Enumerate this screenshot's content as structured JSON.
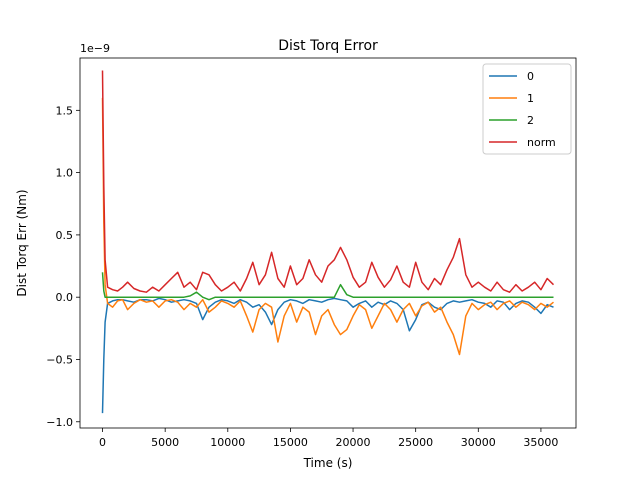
{
  "chart_data": {
    "type": "line",
    "title": "Dist Torq Error",
    "xlabel": "Time (s)",
    "ylabel": "Dist Torq Err (Nm)",
    "y_offset_text": "1e−9",
    "xlim": [
      -1800,
      37800
    ],
    "ylim": [
      -1.05,
      1.92
    ],
    "xticks": [
      0,
      5000,
      10000,
      15000,
      20000,
      25000,
      30000,
      35000
    ],
    "xtick_labels": [
      "0",
      "5000",
      "10000",
      "15000",
      "20000",
      "25000",
      "30000",
      "35000"
    ],
    "yticks": [
      -1.0,
      -0.5,
      0.0,
      0.5,
      1.0,
      1.5
    ],
    "ytick_labels": [
      "−1.0",
      "−0.5",
      "0.0",
      "0.5",
      "1.0",
      "1.5"
    ],
    "grid": false,
    "legend_position": "top-right",
    "series": [
      {
        "name": "0",
        "color": "#1f77b4",
        "x": [
          0,
          100,
          200,
          400,
          800,
          1200,
          1600,
          2000,
          2500,
          3000,
          3500,
          4000,
          4500,
          5000,
          5500,
          6000,
          6500,
          7000,
          7500,
          8000,
          8500,
          9000,
          9500,
          10000,
          10500,
          11000,
          11500,
          12000,
          12500,
          13000,
          13500,
          14000,
          14500,
          15000,
          15500,
          16000,
          16500,
          17000,
          17500,
          18000,
          18500,
          19000,
          19500,
          20000,
          20500,
          21000,
          21500,
          22000,
          22500,
          23000,
          23500,
          24000,
          24500,
          25000,
          25500,
          26000,
          26500,
          27000,
          27500,
          28000,
          28500,
          29000,
          29500,
          30000,
          30500,
          31000,
          31500,
          32000,
          32500,
          33000,
          33500,
          34000,
          34500,
          35000,
          35500,
          36000
        ],
        "values": [
          -0.93,
          -0.5,
          -0.2,
          -0.05,
          -0.03,
          -0.02,
          -0.02,
          -0.03,
          -0.04,
          -0.02,
          -0.02,
          -0.03,
          -0.01,
          -0.02,
          -0.04,
          -0.03,
          -0.02,
          -0.03,
          -0.05,
          -0.18,
          -0.08,
          -0.04,
          -0.02,
          -0.03,
          -0.05,
          -0.02,
          -0.04,
          -0.08,
          -0.06,
          -0.12,
          -0.22,
          -0.1,
          -0.04,
          -0.02,
          -0.03,
          -0.05,
          -0.02,
          -0.03,
          -0.04,
          -0.02,
          -0.01,
          -0.02,
          -0.03,
          -0.08,
          -0.05,
          -0.03,
          -0.08,
          -0.04,
          -0.06,
          -0.03,
          -0.05,
          -0.1,
          -0.27,
          -0.18,
          -0.06,
          -0.04,
          -0.08,
          -0.1,
          -0.05,
          -0.03,
          -0.04,
          -0.03,
          -0.02,
          -0.04,
          -0.05,
          -0.08,
          -0.03,
          -0.04,
          -0.1,
          -0.05,
          -0.03,
          -0.04,
          -0.08,
          -0.13,
          -0.06,
          -0.08
        ]
      },
      {
        "name": "1",
        "color": "#ff7f0e",
        "x": [
          0,
          100,
          200,
          400,
          800,
          1200,
          1600,
          2000,
          2500,
          3000,
          3500,
          4000,
          4500,
          5000,
          5500,
          6000,
          6500,
          7000,
          7500,
          8000,
          8500,
          9000,
          9500,
          10000,
          10500,
          11000,
          11500,
          12000,
          12500,
          13000,
          13500,
          14000,
          14500,
          15000,
          15500,
          16000,
          16500,
          17000,
          17500,
          18000,
          18500,
          19000,
          19500,
          20000,
          20500,
          21000,
          21500,
          22000,
          22500,
          23000,
          23500,
          24000,
          24500,
          25000,
          25500,
          26000,
          26500,
          27000,
          27500,
          28000,
          28500,
          29000,
          29500,
          30000,
          30500,
          31000,
          31500,
          32000,
          32500,
          33000,
          33500,
          34000,
          34500,
          35000,
          35500,
          36000
        ],
        "values": [
          1.6,
          0.6,
          0.1,
          -0.05,
          -0.08,
          -0.03,
          -0.02,
          -0.1,
          -0.05,
          -0.02,
          -0.04,
          -0.03,
          -0.08,
          -0.03,
          -0.02,
          -0.04,
          -0.1,
          -0.05,
          -0.08,
          -0.02,
          -0.12,
          -0.08,
          -0.03,
          -0.05,
          -0.08,
          -0.03,
          -0.15,
          -0.28,
          -0.1,
          -0.05,
          -0.08,
          -0.36,
          -0.15,
          -0.05,
          -0.2,
          -0.08,
          -0.12,
          -0.3,
          -0.15,
          -0.1,
          -0.22,
          -0.3,
          -0.26,
          -0.15,
          -0.06,
          -0.1,
          -0.25,
          -0.15,
          -0.05,
          -0.1,
          -0.2,
          -0.1,
          -0.05,
          -0.15,
          -0.07,
          -0.04,
          -0.12,
          -0.08,
          -0.2,
          -0.3,
          -0.46,
          -0.15,
          -0.05,
          -0.1,
          -0.06,
          -0.04,
          -0.1,
          -0.05,
          -0.03,
          -0.08,
          -0.04,
          -0.06,
          -0.1,
          -0.05,
          -0.08,
          -0.04
        ]
      },
      {
        "name": "2",
        "color": "#2ca02c",
        "x": [
          0,
          100,
          200,
          400,
          800,
          1200,
          1600,
          2000,
          2500,
          3000,
          3500,
          4000,
          4500,
          5000,
          5500,
          6000,
          6500,
          7000,
          7500,
          8000,
          8500,
          9000,
          9500,
          10000,
          10500,
          11000,
          11500,
          12000,
          12500,
          13000,
          13500,
          14000,
          14500,
          15000,
          15500,
          16000,
          16500,
          17000,
          17500,
          18000,
          18500,
          19000,
          19500,
          20000,
          20500,
          21000,
          21500,
          22000,
          22500,
          23000,
          23500,
          24000,
          24500,
          25000,
          25500,
          26000,
          26500,
          27000,
          27500,
          28000,
          28500,
          29000,
          29500,
          30000,
          30500,
          31000,
          31500,
          32000,
          32500,
          33000,
          33500,
          34000,
          34500,
          35000,
          35500,
          36000
        ],
        "values": [
          0.2,
          0.05,
          0.0,
          0.0,
          0.0,
          0.0,
          0.0,
          0.0,
          0.0,
          0.0,
          0.0,
          0.0,
          0.0,
          0.0,
          0.0,
          0.0,
          0.0,
          0.01,
          0.04,
          0.0,
          -0.02,
          0.0,
          0.0,
          0.0,
          0.0,
          0.0,
          0.0,
          0.0,
          0.0,
          0.0,
          0.0,
          0.0,
          0.0,
          0.0,
          0.0,
          0.0,
          0.0,
          0.0,
          0.0,
          0.0,
          0.0,
          0.1,
          0.02,
          0.0,
          0.0,
          0.0,
          0.0,
          0.0,
          0.0,
          0.0,
          0.0,
          0.0,
          0.0,
          0.0,
          0.0,
          0.0,
          0.0,
          0.0,
          0.0,
          0.0,
          0.0,
          0.0,
          0.0,
          0.0,
          0.0,
          0.0,
          0.0,
          0.0,
          0.0,
          0.0,
          0.0,
          0.0,
          0.0,
          0.0,
          0.0,
          0.0
        ]
      },
      {
        "name": "norm",
        "color": "#d62728",
        "x": [
          0,
          100,
          200,
          400,
          800,
          1200,
          1600,
          2000,
          2500,
          3000,
          3500,
          4000,
          4500,
          5000,
          5500,
          6000,
          6500,
          7000,
          7500,
          8000,
          8500,
          9000,
          9500,
          10000,
          10500,
          11000,
          11500,
          12000,
          12500,
          13000,
          13500,
          14000,
          14500,
          15000,
          15500,
          16000,
          16500,
          17000,
          17500,
          18000,
          18500,
          19000,
          19500,
          20000,
          20500,
          21000,
          21500,
          22000,
          22500,
          23000,
          23500,
          24000,
          24500,
          25000,
          25500,
          26000,
          26500,
          27000,
          27500,
          28000,
          28500,
          29000,
          29500,
          30000,
          30500,
          31000,
          31500,
          32000,
          32500,
          33000,
          33500,
          34000,
          34500,
          35000,
          35500,
          36000
        ],
        "values": [
          1.82,
          0.9,
          0.3,
          0.08,
          0.06,
          0.05,
          0.08,
          0.12,
          0.07,
          0.05,
          0.04,
          0.08,
          0.05,
          0.1,
          0.15,
          0.2,
          0.08,
          0.12,
          0.06,
          0.2,
          0.18,
          0.1,
          0.05,
          0.08,
          0.12,
          0.05,
          0.15,
          0.28,
          0.1,
          0.18,
          0.36,
          0.15,
          0.08,
          0.25,
          0.1,
          0.15,
          0.3,
          0.18,
          0.12,
          0.25,
          0.3,
          0.4,
          0.3,
          0.16,
          0.08,
          0.12,
          0.28,
          0.16,
          0.08,
          0.14,
          0.25,
          0.12,
          0.08,
          0.28,
          0.12,
          0.06,
          0.15,
          0.1,
          0.22,
          0.32,
          0.47,
          0.18,
          0.08,
          0.12,
          0.08,
          0.05,
          0.12,
          0.06,
          0.04,
          0.1,
          0.05,
          0.08,
          0.12,
          0.06,
          0.15,
          0.1
        ]
      }
    ]
  }
}
